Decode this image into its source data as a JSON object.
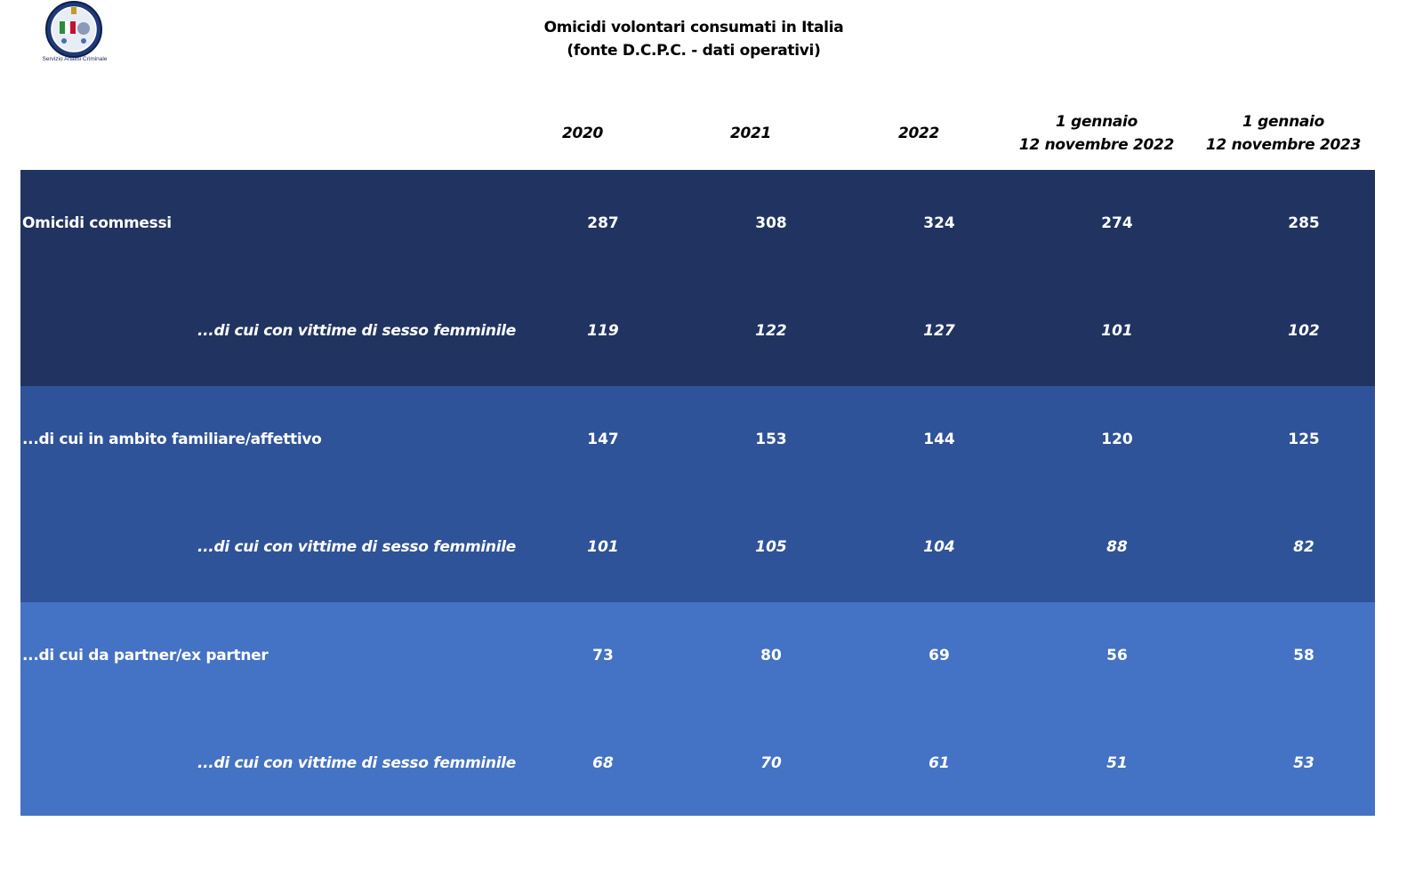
{
  "logo": {
    "caption": "Servizio Analisi Criminale"
  },
  "title": {
    "line1": "Omicidi volontari consumati in Italia",
    "line2": "(fonte D.C.P.C. - dati operativi)"
  },
  "columns": [
    {
      "line1": "2020",
      "line2": ""
    },
    {
      "line1": "2021",
      "line2": ""
    },
    {
      "line1": "2022",
      "line2": ""
    },
    {
      "line1": "1 gennaio",
      "line2": "12 novembre 2022"
    },
    {
      "line1": "1 gennaio",
      "line2": "12 novembre 2023"
    }
  ],
  "rows": [
    {
      "label": "Omicidi commessi",
      "values": [
        "287",
        "308",
        "324",
        "274",
        "285"
      ]
    },
    {
      "label": "...di cui con vittime di sesso femminile",
      "values": [
        "119",
        "122",
        "127",
        "101",
        "102"
      ]
    },
    {
      "label": "...di cui in ambito familiare/affettivo",
      "values": [
        "147",
        "153",
        "144",
        "120",
        "125"
      ]
    },
    {
      "label": "...di cui con vittime di sesso femminile",
      "values": [
        "101",
        "105",
        "104",
        "88",
        "82"
      ]
    },
    {
      "label": "...di cui da partner/ex partner",
      "values": [
        "73",
        "80",
        "69",
        "56",
        "58"
      ]
    },
    {
      "label": "...di cui con vittime di sesso femminile",
      "values": [
        "68",
        "70",
        "61",
        "51",
        "53"
      ]
    }
  ],
  "colors": {
    "band_dark": "#213461",
    "band_mid": "#2f5398",
    "band_light": "#4472c4",
    "text_on_band": "#ffffff"
  }
}
